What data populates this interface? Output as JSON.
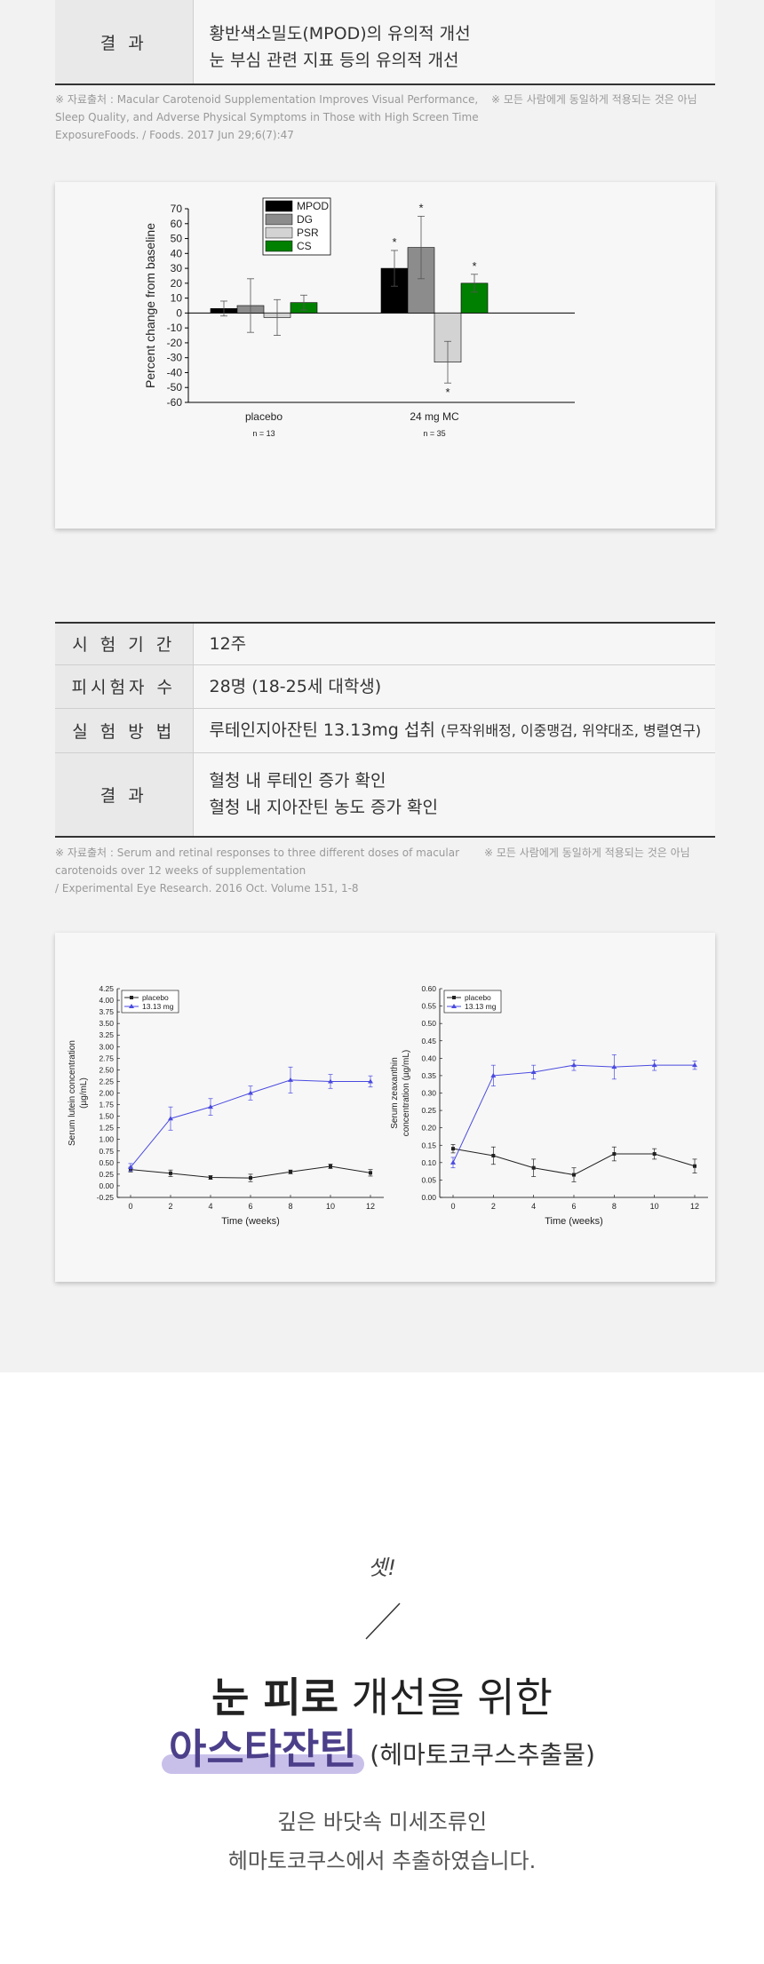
{
  "table1": {
    "rows": [
      {
        "key": "결 과",
        "lines": [
          "황반색소밀도(MPOD)의 유의적 개선",
          "눈 부심 관련 지표 등의 유의적 개선"
        ]
      }
    ]
  },
  "source1": {
    "left": [
      "※ 자료출처 : Macular Carotenoid Supplementation Improves Visual Performance,",
      "Sleep Quality, and Adverse Physical Symptoms in Those with High Screen Time",
      "ExposureFoods. / Foods. 2017 Jun 29;6(7):47"
    ],
    "right": "※ 모든 사람에게 동일하게 적용되는 것은 아님"
  },
  "chart_data": [
    {
      "type": "bar",
      "ylabel": "Percent change from baseline",
      "ylim": [
        -60,
        70
      ],
      "yticks": [
        "70",
        "60",
        "50",
        "40",
        "30",
        "20",
        "10",
        "0",
        "-10",
        "-20",
        "-30",
        "-40",
        "-50",
        "-60"
      ],
      "categories": [
        "placebo",
        "24 mg MC"
      ],
      "category_notes": [
        "n = 13",
        "n = 35"
      ],
      "legend_position": "top-left",
      "series": [
        {
          "name": "MPOD",
          "color": "#000000",
          "values": [
            3,
            30
          ],
          "err": [
            5,
            12
          ],
          "sig": [
            false,
            true
          ]
        },
        {
          "name": "DG",
          "color": "#8c8c8c",
          "values": [
            5,
            44
          ],
          "err": [
            18,
            21
          ],
          "sig": [
            false,
            true
          ]
        },
        {
          "name": "PSR",
          "color": "#d3d3d3",
          "values": [
            -3,
            -33
          ],
          "err": [
            12,
            14
          ],
          "sig": [
            false,
            true
          ]
        },
        {
          "name": "CS",
          "color": "#008000",
          "values": [
            7,
            20
          ],
          "err": [
            5,
            6
          ],
          "sig": [
            false,
            true
          ]
        }
      ],
      "significance_marker": "*"
    },
    {
      "type": "line",
      "ylabel": [
        "Serum lutein concentration",
        "(µg/mL)"
      ],
      "xlabel": "Time (weeks)",
      "x": [
        0,
        2,
        4,
        6,
        8,
        10,
        12
      ],
      "ylim": [
        -0.25,
        4.25
      ],
      "yticks": [
        "4.25",
        "4.00",
        "3.75",
        "3.50",
        "3.25",
        "3.00",
        "2.75",
        "2.50",
        "2.25",
        "2.00",
        "1.75",
        "1.50",
        "1.25",
        "1.00",
        "0.75",
        "0.50",
        "0.25",
        "0.00",
        "-0.25"
      ],
      "legend_position": "top-left",
      "series": [
        {
          "name": "placebo",
          "color": "#222222",
          "marker": "square",
          "values": [
            0.35,
            0.27,
            0.18,
            0.17,
            0.3,
            0.42,
            0.28
          ],
          "err": [
            0.05,
            0.07,
            0.04,
            0.08,
            0.04,
            0.05,
            0.07
          ]
        },
        {
          "name": "13.13 mg",
          "color": "#4a4ae0",
          "marker": "triangle",
          "values": [
            0.4,
            1.45,
            1.7,
            2.0,
            2.28,
            2.25,
            2.25
          ],
          "err": [
            0.08,
            0.25,
            0.18,
            0.15,
            0.28,
            0.15,
            0.12
          ]
        }
      ]
    },
    {
      "type": "line",
      "ylabel": [
        "Serum zeaxanthin",
        "concentration (µg/mL)"
      ],
      "xlabel": "Time (weeks)",
      "x": [
        0,
        2,
        4,
        6,
        8,
        10,
        12
      ],
      "ylim": [
        0,
        0.6
      ],
      "yticks": [
        "0.60",
        "0.55",
        "0.50",
        "0.45",
        "0.40",
        "0.35",
        "0.30",
        "0.25",
        "0.20",
        "0.15",
        "0.10",
        "0.05",
        "0.00"
      ],
      "legend_position": "top-left",
      "series": [
        {
          "name": "placebo",
          "color": "#222222",
          "marker": "square",
          "values": [
            0.14,
            0.12,
            0.085,
            0.065,
            0.125,
            0.125,
            0.09
          ],
          "err": [
            0.012,
            0.025,
            0.025,
            0.02,
            0.02,
            0.015,
            0.02
          ]
        },
        {
          "name": "13.13 mg",
          "color": "#4a4ae0",
          "marker": "triangle",
          "values": [
            0.1,
            0.35,
            0.36,
            0.38,
            0.375,
            0.38,
            0.38
          ],
          "err": [
            0.015,
            0.03,
            0.02,
            0.015,
            0.035,
            0.015,
            0.012
          ]
        }
      ]
    }
  ],
  "table2": {
    "rows": [
      {
        "key": "시 험 기 간",
        "value": "12주"
      },
      {
        "key": "피시험자 수",
        "value": "28명 (18-25세 대학생)"
      },
      {
        "key": "실 험 방 법",
        "value": "루테인지아잔틴 13.13mg 섭취",
        "note": "(무작위배정, 이중맹검, 위약대조, 병렬연구)"
      },
      {
        "key": "결 과",
        "lines": [
          "혈청 내 루테인 증가 확인",
          "혈청 내 지아잔틴 농도 증가 확인"
        ]
      }
    ]
  },
  "source2": {
    "left": [
      "※ 자료출처 : Serum and retinal responses to three different doses of macular",
      "carotenoids over 12 weeks of supplementation",
      "/ Experimental Eye Research. 2016 Oct. Volume 151, 1-8"
    ],
    "right": "※ 모든 사람에게 동일하게 적용되는 것은 아님"
  },
  "promo": {
    "subtitle": "셋!",
    "headline_bold": "눈 피로",
    "headline_rest": " 개선을 위한",
    "product": "아스타잔틴",
    "product_paren": "(헤마토코쿠스추출물)",
    "desc": [
      "깊은 바닷속 미세조류인",
      "헤마토코쿠스에서 추출하였습니다."
    ]
  },
  "colors": {
    "highlight": "#c9c0ea",
    "product_text": "#4c3f8a",
    "line_blue": "#4a4ae0"
  }
}
